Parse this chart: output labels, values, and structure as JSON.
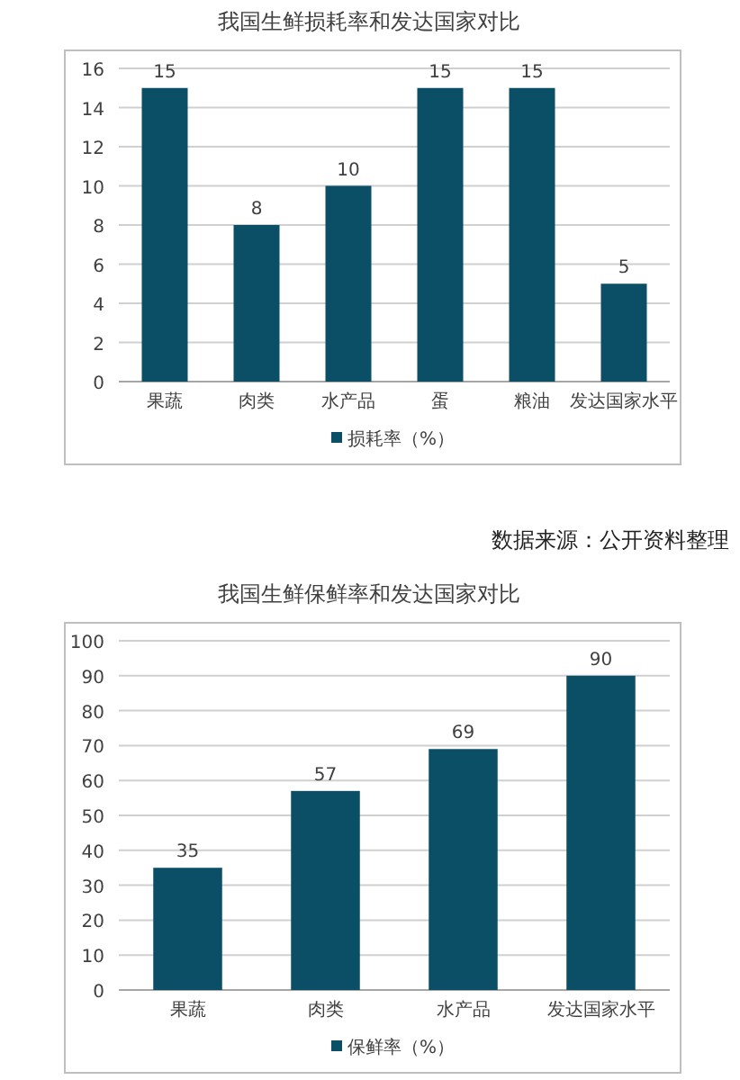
{
  "chart_data": [
    {
      "type": "bar",
      "title": "我国生鲜损耗率和发达国家对比",
      "categories": [
        "果蔬",
        "肉类",
        "水产品",
        "蛋",
        "粮油",
        "发达国家水平"
      ],
      "series": [
        {
          "name": "损耗率（%）",
          "color": "#0b4f66",
          "values": [
            15,
            8,
            10,
            15,
            15,
            5
          ]
        }
      ],
      "ylim": [
        0,
        16
      ],
      "yticks": [
        0,
        2,
        4,
        6,
        8,
        10,
        12,
        14,
        16
      ],
      "grid": "y",
      "legend": "bottom",
      "data_labels": true,
      "annotations": [
        "数据来源：公开资料整理"
      ]
    },
    {
      "type": "bar",
      "title": "我国生鲜保鲜率和发达国家对比",
      "categories": [
        "果蔬",
        "肉类",
        "水产品",
        "发达国家水平"
      ],
      "series": [
        {
          "name": "保鲜率（%）",
          "color": "#0b4f66",
          "values": [
            35,
            57,
            69,
            90
          ]
        }
      ],
      "ylim": [
        0,
        100
      ],
      "yticks": [
        0,
        10,
        20,
        30,
        40,
        50,
        60,
        70,
        80,
        90,
        100
      ],
      "grid": "y",
      "legend": "bottom",
      "data_labels": true
    }
  ]
}
